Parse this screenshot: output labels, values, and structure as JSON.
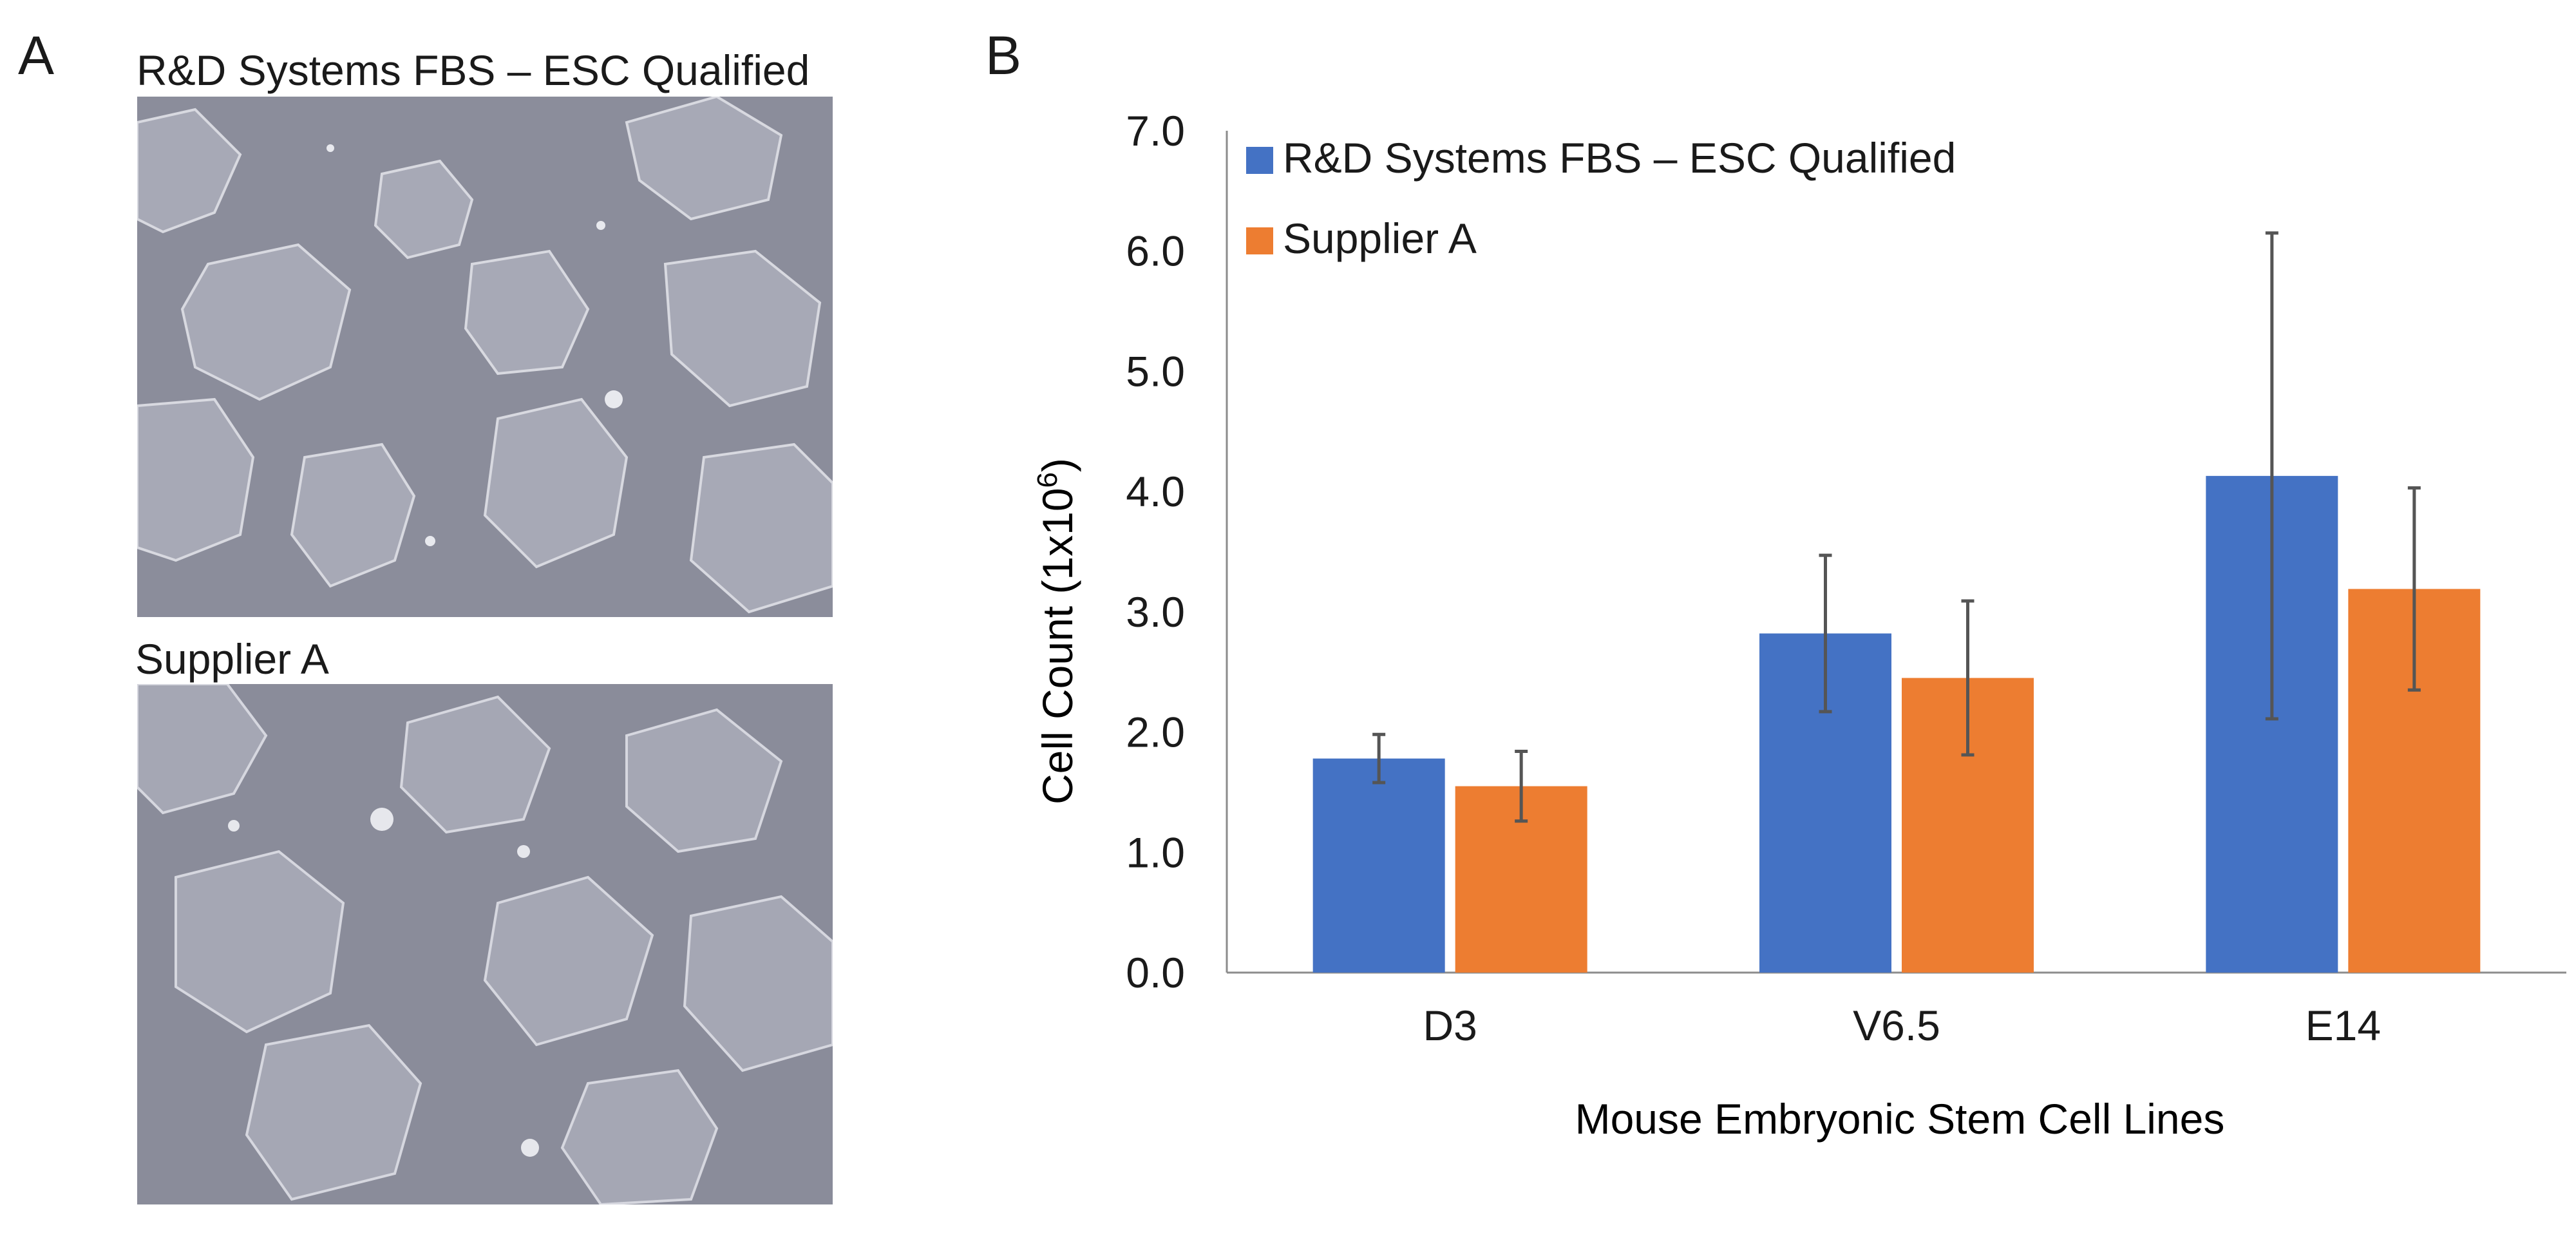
{
  "panels": {
    "a_letter": "A",
    "b_letter": "B"
  },
  "micrographs": {
    "top_label": "R&D Systems FBS – ESC Qualified",
    "bottom_label": "Supplier A"
  },
  "chart_data": {
    "type": "bar",
    "categories": [
      "D3",
      "V6.5",
      "E14"
    ],
    "series": [
      {
        "name": "R&D Systems FBS – ESC Qualified",
        "color": "#4472C4",
        "values": [
          1.78,
          2.82,
          4.13
        ],
        "error": [
          0.2,
          0.65,
          2.02
        ]
      },
      {
        "name": "Supplier A",
        "color": "#ED7D31",
        "values": [
          1.55,
          2.45,
          3.19
        ],
        "error": [
          0.29,
          0.64,
          0.84
        ]
      }
    ],
    "xlabel": "Mouse Embryonic Stem Cell Lines",
    "ylabel_prefix": "Cell Count (1x10",
    "ylabel_exponent": "6",
    "ylabel_suffix": ")",
    "ylim": [
      0,
      7
    ],
    "yticks": [
      "0.0",
      "1.0",
      "2.0",
      "3.0",
      "4.0",
      "5.0",
      "6.0",
      "7.0"
    ],
    "grid": false,
    "legend_position": "top-left",
    "colors": {
      "axis": "#8c8c8c",
      "error_bar": "#555555",
      "text": "#1a1a1a"
    }
  }
}
